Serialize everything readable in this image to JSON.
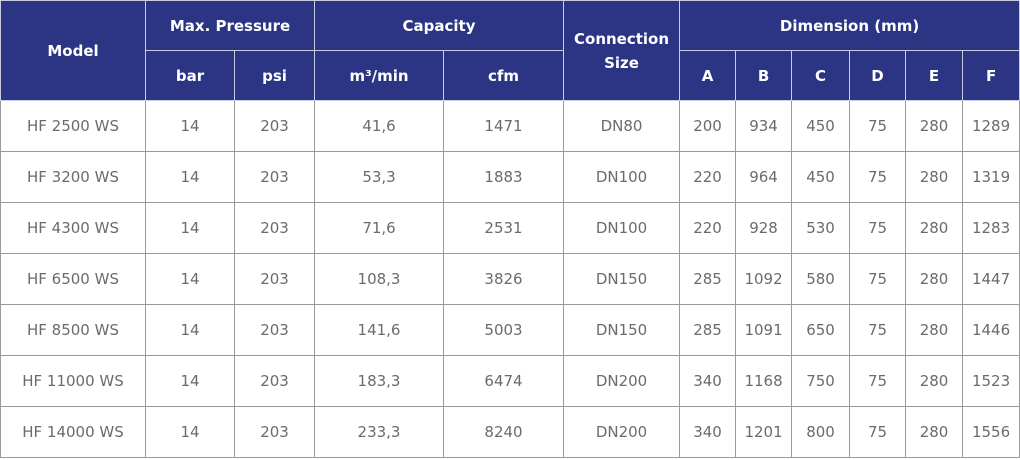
{
  "header": {
    "model": "Model",
    "max_pressure": "Max. Pressure",
    "capacity": "Capacity",
    "connection_size": "Connection Size",
    "dimension": "Dimension (mm)",
    "bar": "bar",
    "psi": "psi",
    "m3min": "m³/min",
    "cfm": "cfm",
    "dims": [
      "A",
      "B",
      "C",
      "D",
      "E",
      "F"
    ]
  },
  "rows": [
    {
      "model": "HF 2500 WS",
      "bar": "14",
      "psi": "203",
      "m3min": "41,6",
      "cfm": "1471",
      "conn": "DN80",
      "dims": [
        "200",
        "934",
        "450",
        "75",
        "280",
        "1289"
      ]
    },
    {
      "model": "HF 3200 WS",
      "bar": "14",
      "psi": "203",
      "m3min": "53,3",
      "cfm": "1883",
      "conn": "DN100",
      "dims": [
        "220",
        "964",
        "450",
        "75",
        "280",
        "1319"
      ]
    },
    {
      "model": "HF 4300 WS",
      "bar": "14",
      "psi": "203",
      "m3min": "71,6",
      "cfm": "2531",
      "conn": "DN100",
      "dims": [
        "220",
        "928",
        "530",
        "75",
        "280",
        "1283"
      ]
    },
    {
      "model": "HF 6500 WS",
      "bar": "14",
      "psi": "203",
      "m3min": "108,3",
      "cfm": "3826",
      "conn": "DN150",
      "dims": [
        "285",
        "1092",
        "580",
        "75",
        "280",
        "1447"
      ]
    },
    {
      "model": "HF 8500 WS",
      "bar": "14",
      "psi": "203",
      "m3min": "141,6",
      "cfm": "5003",
      "conn": "DN150",
      "dims": [
        "285",
        "1091",
        "650",
        "75",
        "280",
        "1446"
      ]
    },
    {
      "model": "HF 11000 WS",
      "bar": "14",
      "psi": "203",
      "m3min": "183,3",
      "cfm": "6474",
      "conn": "DN200",
      "dims": [
        "340",
        "1168",
        "750",
        "75",
        "280",
        "1523"
      ]
    },
    {
      "model": "HF 14000 WS",
      "bar": "14",
      "psi": "203",
      "m3min": "233,3",
      "cfm": "8240",
      "conn": "DN200",
      "dims": [
        "340",
        "1201",
        "800",
        "75",
        "280",
        "1556"
      ]
    }
  ],
  "colors": {
    "header_bg": "#2c3583",
    "header_text": "#ffffff",
    "cell_text": "#6b6b6b",
    "border": "#9a9a9a"
  }
}
